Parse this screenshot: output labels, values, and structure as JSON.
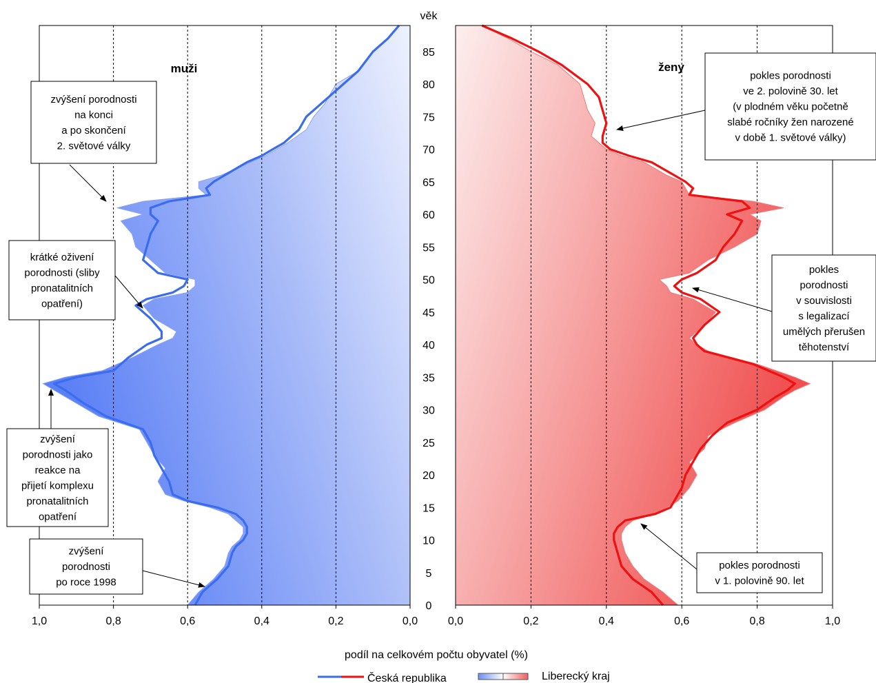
{
  "chart_data": {
    "type": "population-pyramid",
    "age_axis": {
      "label": "věk",
      "ticks": [
        0,
        5,
        10,
        15,
        20,
        25,
        30,
        35,
        40,
        45,
        50,
        55,
        60,
        65,
        70,
        75,
        80,
        85
      ],
      "range": [
        0,
        89
      ]
    },
    "xlabel": "podíl na celkovém počtu obyvatel (%)",
    "panels": [
      {
        "id": "men",
        "label": "muži",
        "xlim": [
          1.0,
          0.0
        ],
        "tick_labels": [
          "1,0",
          "0,8",
          "0,6",
          "0,4",
          "0,2",
          "0,0"
        ],
        "tick_values": [
          1.0,
          0.8,
          0.6,
          0.4,
          0.2,
          0.0
        ],
        "gridlines": [
          0.8,
          0.6,
          0.4,
          0.2
        ],
        "series": {
          "Česká republika": [
            [
              0,
              0.58
            ],
            [
              2,
              0.56
            ],
            [
              4,
              0.52
            ],
            [
              6,
              0.49
            ],
            [
              8,
              0.48
            ],
            [
              9,
              0.47
            ],
            [
              10,
              0.45
            ],
            [
              11,
              0.44
            ],
            [
              12,
              0.44
            ],
            [
              13,
              0.45
            ],
            [
              14,
              0.47
            ],
            [
              15,
              0.52
            ],
            [
              16,
              0.6
            ],
            [
              17,
              0.64
            ],
            [
              19,
              0.65
            ],
            [
              21,
              0.67
            ],
            [
              23,
              0.69
            ],
            [
              25,
              0.7
            ],
            [
              27,
              0.72
            ],
            [
              29,
              0.82
            ],
            [
              31,
              0.88
            ],
            [
              33,
              0.93
            ],
            [
              34,
              0.96
            ],
            [
              35,
              0.9
            ],
            [
              36,
              0.8
            ],
            [
              38,
              0.76
            ],
            [
              40,
              0.71
            ],
            [
              41,
              0.67
            ],
            [
              42,
              0.67
            ],
            [
              44,
              0.7
            ],
            [
              46,
              0.74
            ],
            [
              47,
              0.71
            ],
            [
              48,
              0.64
            ],
            [
              49,
              0.61
            ],
            [
              50,
              0.6
            ],
            [
              51,
              0.68
            ],
            [
              53,
              0.72
            ],
            [
              55,
              0.71
            ],
            [
              57,
              0.7
            ],
            [
              59,
              0.68
            ],
            [
              60,
              0.7
            ],
            [
              61,
              0.7
            ],
            [
              62,
              0.65
            ],
            [
              63,
              0.54
            ],
            [
              64,
              0.55
            ],
            [
              65,
              0.53
            ],
            [
              66,
              0.5
            ],
            [
              68,
              0.44
            ],
            [
              69,
              0.4
            ],
            [
              70,
              0.37
            ],
            [
              71,
              0.34
            ],
            [
              73,
              0.3
            ],
            [
              75,
              0.28
            ],
            [
              77,
              0.24
            ],
            [
              80,
              0.18
            ],
            [
              82,
              0.14
            ],
            [
              85,
              0.1
            ],
            [
              87,
              0.06
            ],
            [
              89,
              0.03
            ]
          ],
          "Liberecký kraj": [
            [
              0,
              0.6
            ],
            [
              2,
              0.57
            ],
            [
              4,
              0.53
            ],
            [
              6,
              0.5
            ],
            [
              8,
              0.49
            ],
            [
              9,
              0.48
            ],
            [
              10,
              0.46
            ],
            [
              11,
              0.45
            ],
            [
              12,
              0.45
            ],
            [
              13,
              0.47
            ],
            [
              14,
              0.49
            ],
            [
              15,
              0.54
            ],
            [
              16,
              0.61
            ],
            [
              17,
              0.66
            ],
            [
              19,
              0.68
            ],
            [
              21,
              0.66
            ],
            [
              23,
              0.69
            ],
            [
              25,
              0.71
            ],
            [
              27,
              0.73
            ],
            [
              29,
              0.84
            ],
            [
              31,
              0.9
            ],
            [
              33,
              0.96
            ],
            [
              34,
              0.99
            ],
            [
              35,
              0.93
            ],
            [
              36,
              0.83
            ],
            [
              38,
              0.75
            ],
            [
              40,
              0.68
            ],
            [
              41,
              0.64
            ],
            [
              42,
              0.63
            ],
            [
              44,
              0.69
            ],
            [
              46,
              0.72
            ],
            [
              47,
              0.69
            ],
            [
              48,
              0.6
            ],
            [
              49,
              0.58
            ],
            [
              50,
              0.58
            ],
            [
              51,
              0.66
            ],
            [
              53,
              0.7
            ],
            [
              55,
              0.74
            ],
            [
              57,
              0.75
            ],
            [
              59,
              0.78
            ],
            [
              60,
              0.72
            ],
            [
              61,
              0.79
            ],
            [
              62,
              0.72
            ],
            [
              63,
              0.55
            ],
            [
              64,
              0.57
            ],
            [
              65,
              0.57
            ],
            [
              66,
              0.51
            ],
            [
              68,
              0.43
            ],
            [
              69,
              0.39
            ],
            [
              70,
              0.36
            ],
            [
              71,
              0.33
            ],
            [
              73,
              0.28
            ],
            [
              75,
              0.26
            ],
            [
              77,
              0.23
            ],
            [
              80,
              0.2
            ],
            [
              82,
              0.14
            ],
            [
              85,
              0.1
            ],
            [
              87,
              0.06
            ],
            [
              89,
              0.03
            ]
          ]
        }
      },
      {
        "id": "women",
        "label": "ženy",
        "xlim": [
          0.0,
          1.0
        ],
        "tick_labels": [
          "0,0",
          "0,2",
          "0,4",
          "0,6",
          "0,8",
          "1,0"
        ],
        "tick_values": [
          0.0,
          0.2,
          0.4,
          0.6,
          0.8,
          1.0
        ],
        "gridlines": [
          0.2,
          0.4,
          0.6,
          0.8
        ],
        "series": {
          "Česká republika": [
            [
              0,
              0.55
            ],
            [
              2,
              0.52
            ],
            [
              4,
              0.47
            ],
            [
              6,
              0.44
            ],
            [
              8,
              0.43
            ],
            [
              10,
              0.42
            ],
            [
              11,
              0.42
            ],
            [
              12,
              0.43
            ],
            [
              13,
              0.45
            ],
            [
              14,
              0.53
            ],
            [
              15,
              0.57
            ],
            [
              16,
              0.58
            ],
            [
              18,
              0.6
            ],
            [
              20,
              0.61
            ],
            [
              22,
              0.63
            ],
            [
              24,
              0.65
            ],
            [
              26,
              0.68
            ],
            [
              28,
              0.72
            ],
            [
              30,
              0.8
            ],
            [
              32,
              0.85
            ],
            [
              33,
              0.88
            ],
            [
              34,
              0.9
            ],
            [
              35,
              0.87
            ],
            [
              37,
              0.79
            ],
            [
              39,
              0.66
            ],
            [
              40,
              0.64
            ],
            [
              41,
              0.63
            ],
            [
              43,
              0.66
            ],
            [
              45,
              0.7
            ],
            [
              47,
              0.65
            ],
            [
              48,
              0.6
            ],
            [
              49,
              0.58
            ],
            [
              50,
              0.6
            ],
            [
              51,
              0.64
            ],
            [
              53,
              0.69
            ],
            [
              55,
              0.71
            ],
            [
              57,
              0.74
            ],
            [
              59,
              0.76
            ],
            [
              60,
              0.72
            ],
            [
              61,
              0.78
            ],
            [
              62,
              0.76
            ],
            [
              63,
              0.62
            ],
            [
              64,
              0.63
            ],
            [
              65,
              0.61
            ],
            [
              66,
              0.58
            ],
            [
              68,
              0.52
            ],
            [
              69,
              0.46
            ],
            [
              70,
              0.41
            ],
            [
              71,
              0.39
            ],
            [
              72,
              0.39
            ],
            [
              74,
              0.4
            ],
            [
              76,
              0.39
            ],
            [
              78,
              0.38
            ],
            [
              80,
              0.35
            ],
            [
              83,
              0.28
            ],
            [
              85,
              0.22
            ],
            [
              87,
              0.15
            ],
            [
              89,
              0.07
            ]
          ],
          "Liberecký kraj": [
            [
              0,
              0.59
            ],
            [
              2,
              0.55
            ],
            [
              4,
              0.5
            ],
            [
              6,
              0.47
            ],
            [
              8,
              0.45
            ],
            [
              10,
              0.44
            ],
            [
              11,
              0.44
            ],
            [
              12,
              0.45
            ],
            [
              13,
              0.47
            ],
            [
              14,
              0.53
            ],
            [
              15,
              0.56
            ],
            [
              16,
              0.59
            ],
            [
              18,
              0.62
            ],
            [
              20,
              0.64
            ],
            [
              22,
              0.62
            ],
            [
              24,
              0.66
            ],
            [
              26,
              0.67
            ],
            [
              28,
              0.74
            ],
            [
              30,
              0.82
            ],
            [
              32,
              0.87
            ],
            [
              33,
              0.9
            ],
            [
              34,
              0.94
            ],
            [
              35,
              0.9
            ],
            [
              37,
              0.8
            ],
            [
              39,
              0.67
            ],
            [
              40,
              0.64
            ],
            [
              41,
              0.62
            ],
            [
              43,
              0.66
            ],
            [
              45,
              0.69
            ],
            [
              47,
              0.63
            ],
            [
              48,
              0.57
            ],
            [
              49,
              0.56
            ],
            [
              50,
              0.54
            ],
            [
              51,
              0.62
            ],
            [
              53,
              0.67
            ],
            [
              55,
              0.74
            ],
            [
              57,
              0.8
            ],
            [
              59,
              0.81
            ],
            [
              60,
              0.78
            ],
            [
              61,
              0.87
            ],
            [
              62,
              0.79
            ],
            [
              63,
              0.62
            ],
            [
              64,
              0.61
            ],
            [
              65,
              0.6
            ],
            [
              66,
              0.56
            ],
            [
              68,
              0.5
            ],
            [
              69,
              0.44
            ],
            [
              70,
              0.4
            ],
            [
              71,
              0.38
            ],
            [
              72,
              0.36
            ],
            [
              74,
              0.37
            ],
            [
              76,
              0.35
            ],
            [
              78,
              0.34
            ],
            [
              80,
              0.33
            ],
            [
              83,
              0.27
            ],
            [
              85,
              0.2
            ],
            [
              87,
              0.14
            ],
            [
              89,
              0.07
            ]
          ]
        }
      }
    ],
    "annotations": [
      {
        "lines": [
          "zvýšení porodnosti",
          "na konci",
          "a po skončení",
          "2. světové války"
        ],
        "panel": "men",
        "points_to_age": 62
      },
      {
        "lines": [
          "krátké oživení",
          "porodnosti (sliby",
          "pronatalitních",
          "opatření)"
        ],
        "panel": "men",
        "points_to_age": 46
      },
      {
        "lines": [
          "zvýšení",
          "porodnosti jako",
          "reakce na",
          "přijetí komplexu",
          "pronatalitních",
          "opatření"
        ],
        "panel": "men",
        "points_to_age": 33
      },
      {
        "lines": [
          "zvýšení",
          "porodnosti",
          "po roce 1998"
        ],
        "panel": "men",
        "points_to_age": 3
      },
      {
        "lines": [
          "pokles porodnosti",
          "ve 2. polovině 30. let",
          "(v plodném věku početně",
          "slabé ročníky žen narozené",
          "v době 1. světové války)"
        ],
        "panel": "women",
        "points_to_age": 73
      },
      {
        "lines": [
          "pokles",
          "porodnosti",
          "v souvislosti",
          "s legalizací",
          "umělých přerušen",
          "těhotenství"
        ],
        "panel": "women",
        "points_to_age": 49
      },
      {
        "lines": [
          "pokles porodnosti",
          "v 1. polovině 90. let"
        ],
        "panel": "women",
        "points_to_age": 12
      }
    ],
    "legend": {
      "placement": "bottom",
      "entries": [
        {
          "label": "Česká republika",
          "kind": "line",
          "colors": [
            "#3a6cf0",
            "#ee1111"
          ]
        },
        {
          "label": "Liberecký kraj",
          "kind": "area",
          "colors": [
            "#5b80f5",
            "#f05050"
          ]
        }
      ]
    },
    "colors": {
      "men_line": "#3a6cf0",
      "men_fill": "#5b80f5",
      "women_line": "#ee1111",
      "women_fill": "#f05050"
    }
  }
}
